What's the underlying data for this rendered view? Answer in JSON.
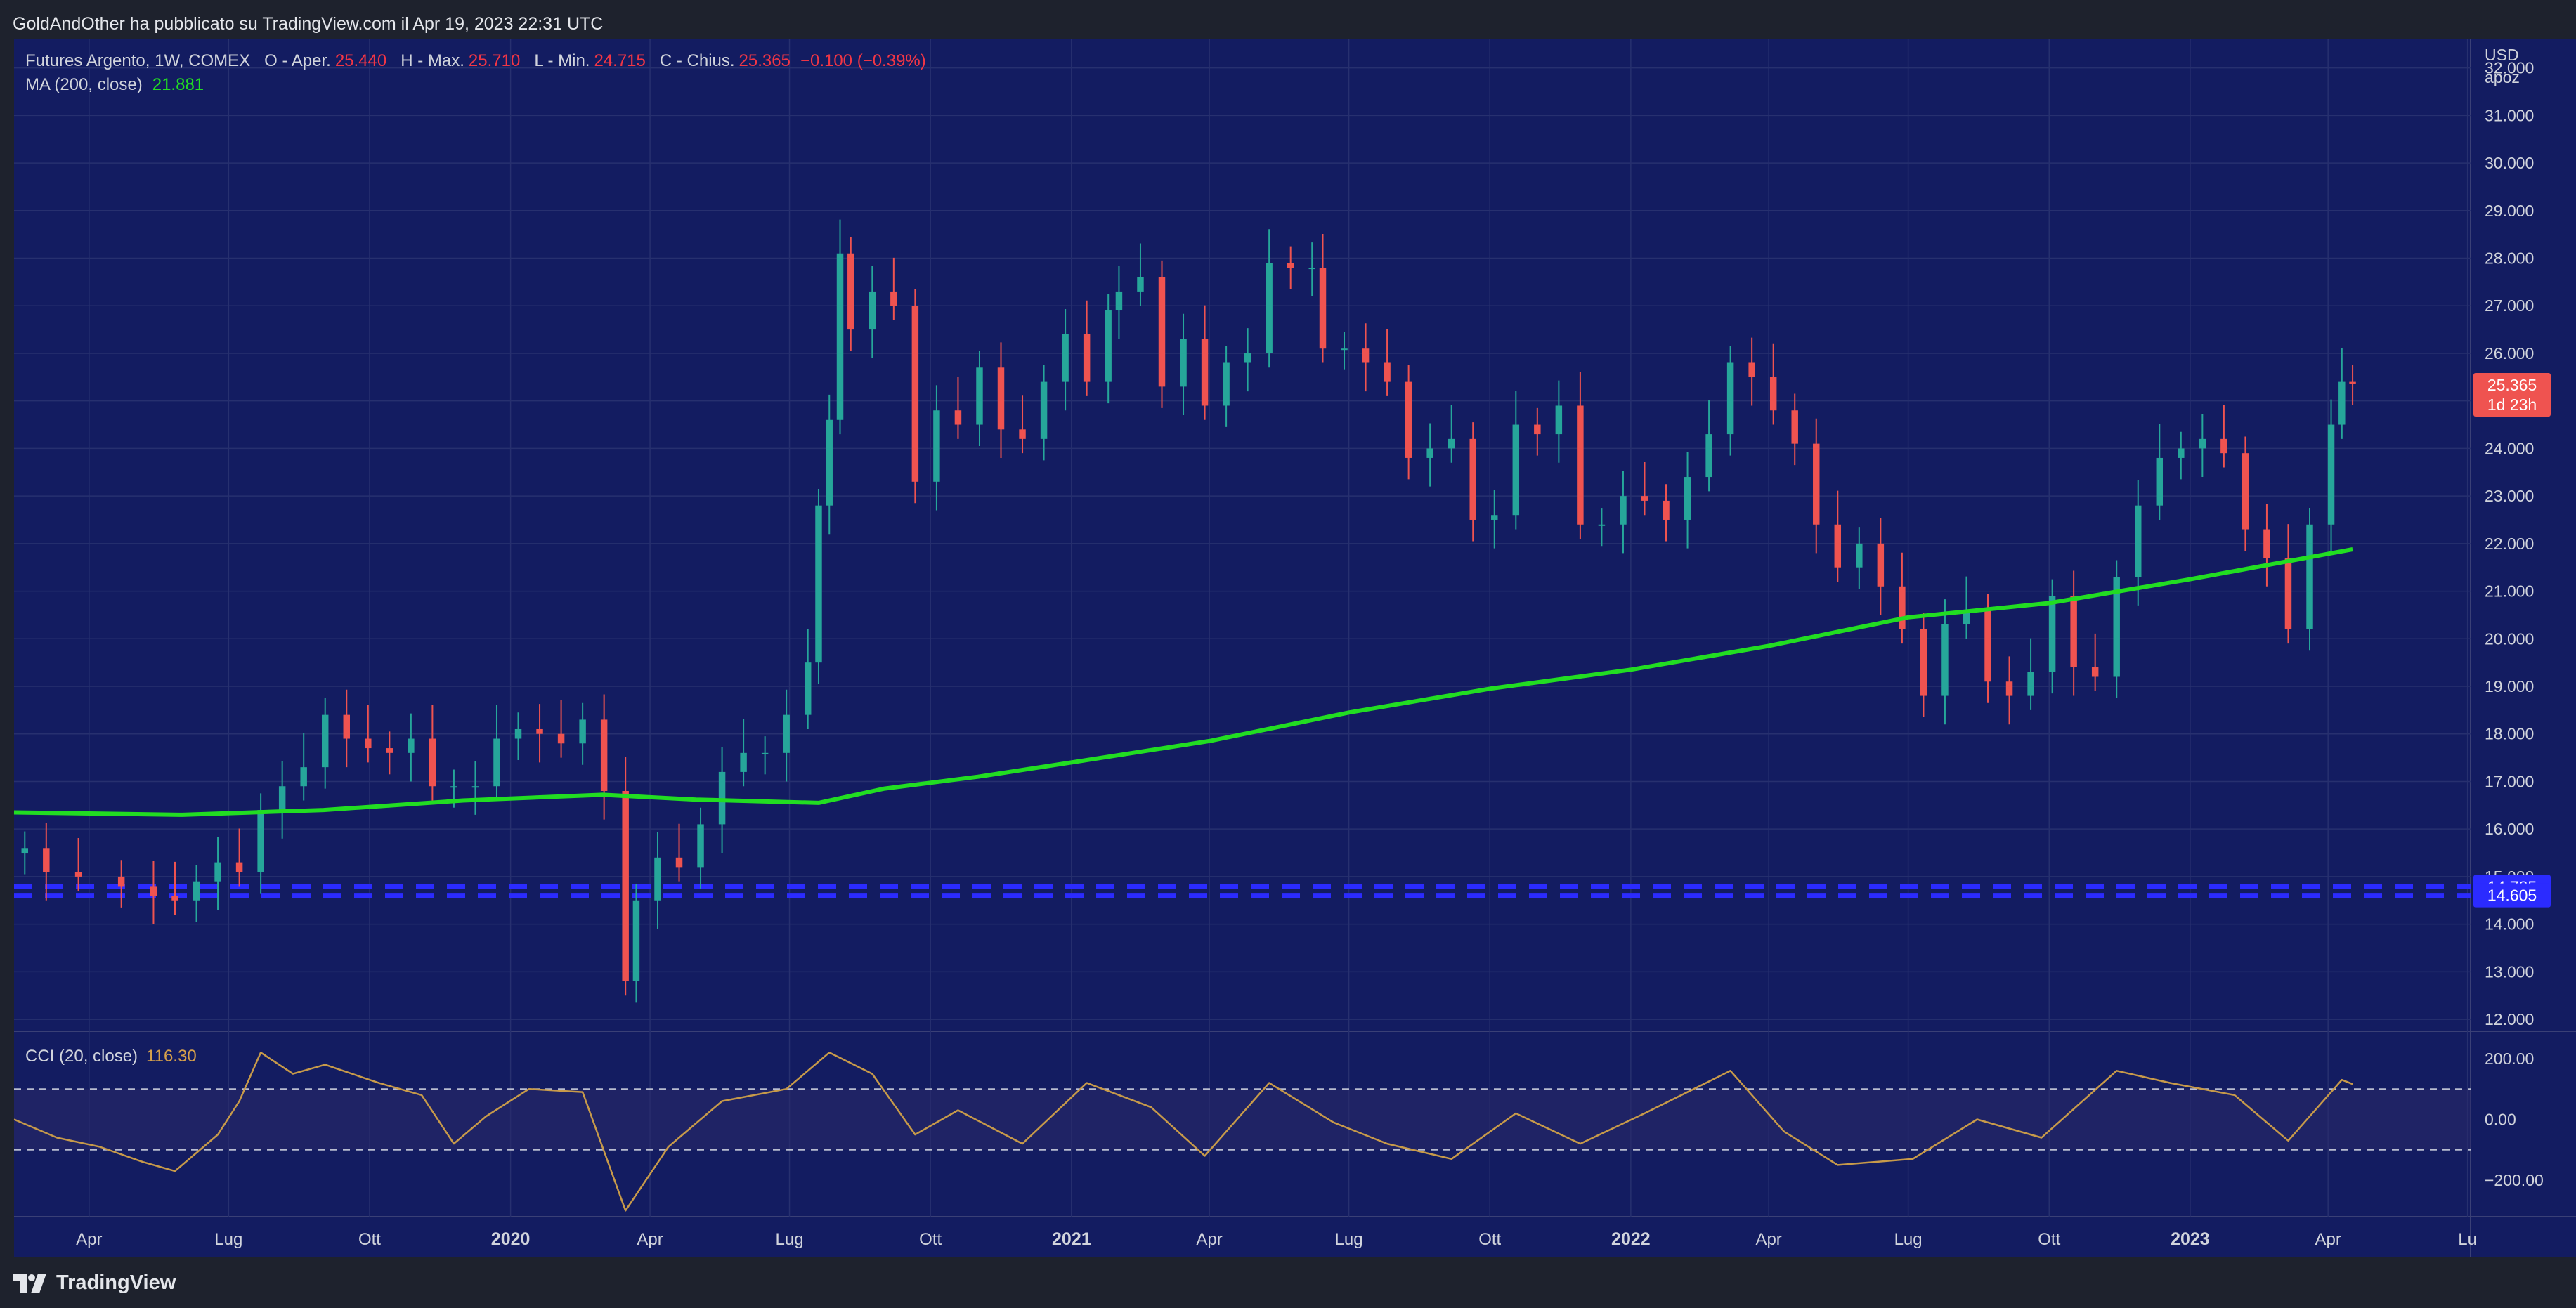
{
  "header": {
    "publisher_line": "GoldAndOther ha pubblicato su TradingView.com il Apr 19, 2023 22:31 UTC"
  },
  "footer": {
    "brand": "TradingView"
  },
  "legend": {
    "symbol": "Futures Argento, 1W, COMEX",
    "open_label": "O - Aper.",
    "open_value": "25.440",
    "high_label": "H - Max.",
    "high_value": "25.710",
    "low_label": "L - Min.",
    "low_value": "24.715",
    "close_label": "C - Chius.",
    "close_value": "25.365",
    "change": "−0.100 (−0.39%)",
    "ma_label": "MA (200, close)",
    "ma_value": "21.881"
  },
  "cci_legend": {
    "label": "CCI (20, close)",
    "value": "116.30"
  },
  "price_axis": {
    "currency": "USD",
    "unit": "apoz",
    "current_price": "25.365",
    "countdown": "1d 23h",
    "level_high": "14.785",
    "level_low": "14.605"
  },
  "colors": {
    "background": "#131c61",
    "up": "#26a69a",
    "down": "#ef5350",
    "ma": "#22dd22",
    "cci": "#c79a4a",
    "level_line": "#2b2bff",
    "price_badge": "#ef5350"
  },
  "chart_data": {
    "type": "candlestick",
    "timeframe": "1W",
    "price_ticks": [
      12,
      13,
      14,
      15,
      16,
      17,
      18,
      19,
      20,
      21,
      22,
      23,
      24,
      25,
      26,
      27,
      28,
      29,
      30,
      31,
      32
    ],
    "price_tick_labels": [
      "12.000",
      "13.000",
      "14.000",
      "15.000",
      "16.000",
      "17.000",
      "18.000",
      "19.000",
      "20.000",
      "21.000",
      "22.000",
      "23.000",
      "24.000",
      "25.000",
      "26.000",
      "27.000",
      "28.000",
      "29.000",
      "30.000",
      "31.000",
      "32.000"
    ],
    "ylim": [
      11.75,
      32.6
    ],
    "xlim": [
      "2019-02-11",
      "2023-07-03"
    ],
    "time_axis": [
      {
        "label": "Apr",
        "date": "2019-04-01"
      },
      {
        "label": "Lug",
        "date": "2019-07-01"
      },
      {
        "label": "Ott",
        "date": "2019-10-01"
      },
      {
        "label": "2020",
        "date": "2020-01-01"
      },
      {
        "label": "Apr",
        "date": "2020-04-01"
      },
      {
        "label": "Lug",
        "date": "2020-07-01"
      },
      {
        "label": "Ott",
        "date": "2020-10-01"
      },
      {
        "label": "2021",
        "date": "2021-01-01"
      },
      {
        "label": "Apr",
        "date": "2021-04-01"
      },
      {
        "label": "Lug",
        "date": "2021-07-01"
      },
      {
        "label": "Ott",
        "date": "2021-10-01"
      },
      {
        "label": "2022",
        "date": "2022-01-01"
      },
      {
        "label": "Apr",
        "date": "2022-04-01"
      },
      {
        "label": "Lug",
        "date": "2022-07-01"
      },
      {
        "label": "Ott",
        "date": "2022-10-01"
      },
      {
        "label": "2023",
        "date": "2023-01-01"
      },
      {
        "label": "Apr",
        "date": "2023-04-01"
      },
      {
        "label": "Lu",
        "date": "2023-07-01"
      }
    ],
    "horizontal_levels": [
      14.785,
      14.605
    ],
    "close_path": [
      [
        "2019-02-18",
        15.6
      ],
      [
        "2019-03-04",
        15.1
      ],
      [
        "2019-03-25",
        15.0
      ],
      [
        "2019-04-22",
        14.8
      ],
      [
        "2019-05-13",
        14.6
      ],
      [
        "2019-05-27",
        14.5
      ],
      [
        "2019-06-10",
        14.9
      ],
      [
        "2019-06-24",
        15.3
      ],
      [
        "2019-07-08",
        15.1
      ],
      [
        "2019-07-22",
        16.4
      ],
      [
        "2019-08-05",
        16.9
      ],
      [
        "2019-08-19",
        17.3
      ],
      [
        "2019-09-02",
        18.4
      ],
      [
        "2019-09-16",
        17.9
      ],
      [
        "2019-09-30",
        17.7
      ],
      [
        "2019-10-14",
        17.6
      ],
      [
        "2019-10-28",
        17.9
      ],
      [
        "2019-11-11",
        16.9
      ],
      [
        "2019-11-25",
        16.9
      ],
      [
        "2019-12-09",
        16.9
      ],
      [
        "2019-12-23",
        17.9
      ],
      [
        "2020-01-06",
        18.1
      ],
      [
        "2020-01-20",
        18.0
      ],
      [
        "2020-02-03",
        17.8
      ],
      [
        "2020-02-17",
        18.3
      ],
      [
        "2020-03-02",
        16.8
      ],
      [
        "2020-03-16",
        12.8
      ],
      [
        "2020-03-23",
        14.5
      ],
      [
        "2020-04-06",
        15.4
      ],
      [
        "2020-04-20",
        15.2
      ],
      [
        "2020-05-04",
        16.1
      ],
      [
        "2020-05-18",
        17.2
      ],
      [
        "2020-06-01",
        17.6
      ],
      [
        "2020-06-15",
        17.6
      ],
      [
        "2020-06-29",
        18.4
      ],
      [
        "2020-07-13",
        19.5
      ],
      [
        "2020-07-20",
        22.8
      ],
      [
        "2020-07-27",
        24.6
      ],
      [
        "2020-08-03",
        28.1
      ],
      [
        "2020-08-10",
        26.5
      ],
      [
        "2020-08-24",
        27.3
      ],
      [
        "2020-09-07",
        27.0
      ],
      [
        "2020-09-21",
        23.3
      ],
      [
        "2020-10-05",
        24.8
      ],
      [
        "2020-10-19",
        24.5
      ],
      [
        "2020-11-02",
        25.7
      ],
      [
        "2020-11-16",
        24.4
      ],
      [
        "2020-11-30",
        24.2
      ],
      [
        "2020-12-14",
        25.4
      ],
      [
        "2020-12-28",
        26.4
      ],
      [
        "2021-01-11",
        25.4
      ],
      [
        "2021-01-25",
        26.9
      ],
      [
        "2021-02-01",
        27.3
      ],
      [
        "2021-02-15",
        27.6
      ],
      [
        "2021-03-01",
        25.3
      ],
      [
        "2021-03-15",
        26.3
      ],
      [
        "2021-03-29",
        24.9
      ],
      [
        "2021-04-12",
        25.8
      ],
      [
        "2021-04-26",
        26.0
      ],
      [
        "2021-05-10",
        27.9
      ],
      [
        "2021-05-24",
        27.8
      ],
      [
        "2021-06-07",
        27.8
      ],
      [
        "2021-06-14",
        26.1
      ],
      [
        "2021-06-28",
        26.1
      ],
      [
        "2021-07-12",
        25.8
      ],
      [
        "2021-07-26",
        25.4
      ],
      [
        "2021-08-09",
        23.8
      ],
      [
        "2021-08-23",
        24.0
      ],
      [
        "2021-09-06",
        24.2
      ],
      [
        "2021-09-20",
        22.5
      ],
      [
        "2021-10-04",
        22.6
      ],
      [
        "2021-10-18",
        24.5
      ],
      [
        "2021-11-01",
        24.3
      ],
      [
        "2021-11-15",
        24.9
      ],
      [
        "2021-11-29",
        22.4
      ],
      [
        "2021-12-13",
        22.4
      ],
      [
        "2021-12-27",
        23.0
      ],
      [
        "2022-01-10",
        22.9
      ],
      [
        "2022-01-24",
        22.5
      ],
      [
        "2022-02-07",
        23.4
      ],
      [
        "2022-02-21",
        24.3
      ],
      [
        "2022-03-07",
        25.8
      ],
      [
        "2022-03-21",
        25.5
      ],
      [
        "2022-04-04",
        24.8
      ],
      [
        "2022-04-18",
        24.1
      ],
      [
        "2022-05-02",
        22.4
      ],
      [
        "2022-05-16",
        21.5
      ],
      [
        "2022-05-30",
        22.0
      ],
      [
        "2022-06-13",
        21.1
      ],
      [
        "2022-06-27",
        20.2
      ],
      [
        "2022-07-11",
        18.8
      ],
      [
        "2022-07-25",
        20.3
      ],
      [
        "2022-08-08",
        20.6
      ],
      [
        "2022-08-22",
        19.1
      ],
      [
        "2022-09-05",
        18.8
      ],
      [
        "2022-09-19",
        19.3
      ],
      [
        "2022-10-03",
        20.9
      ],
      [
        "2022-10-17",
        19.4
      ],
      [
        "2022-10-31",
        19.2
      ],
      [
        "2022-11-14",
        21.3
      ],
      [
        "2022-11-28",
        22.8
      ],
      [
        "2022-12-12",
        23.8
      ],
      [
        "2022-12-26",
        24.0
      ],
      [
        "2023-01-09",
        24.2
      ],
      [
        "2023-01-23",
        23.9
      ],
      [
        "2023-02-06",
        22.3
      ],
      [
        "2023-02-20",
        21.7
      ],
      [
        "2023-03-06",
        20.2
      ],
      [
        "2023-03-20",
        22.4
      ],
      [
        "2023-04-03",
        24.5
      ],
      [
        "2023-04-10",
        25.4
      ],
      [
        "2023-04-17",
        25.365
      ]
    ],
    "ma_200": [
      [
        "2019-02-11",
        16.35
      ],
      [
        "2019-06-01",
        16.3
      ],
      [
        "2019-09-01",
        16.4
      ],
      [
        "2019-12-01",
        16.6
      ],
      [
        "2020-03-01",
        16.72
      ],
      [
        "2020-05-01",
        16.62
      ],
      [
        "2020-07-20",
        16.55
      ],
      [
        "2020-09-01",
        16.85
      ],
      [
        "2020-11-01",
        17.1
      ],
      [
        "2021-01-01",
        17.4
      ],
      [
        "2021-04-01",
        17.85
      ],
      [
        "2021-07-01",
        18.45
      ],
      [
        "2021-10-01",
        18.95
      ],
      [
        "2022-01-01",
        19.35
      ],
      [
        "2022-04-01",
        19.85
      ],
      [
        "2022-07-01",
        20.45
      ],
      [
        "2022-10-01",
        20.75
      ],
      [
        "2023-01-01",
        21.25
      ],
      [
        "2023-04-17",
        21.88
      ]
    ],
    "cci": {
      "label": "CCI (20, close)",
      "ticks": [
        200,
        0,
        -200
      ],
      "tick_labels": [
        "200.00",
        "0.00",
        "−200.00"
      ],
      "bands": [
        100,
        -100
      ],
      "ylim": [
        -320,
        290
      ],
      "points": [
        [
          "2019-02-11",
          0
        ],
        [
          "2019-03-11",
          -60
        ],
        [
          "2019-04-08",
          -90
        ],
        [
          "2019-05-06",
          -140
        ],
        [
          "2019-05-27",
          -170
        ],
        [
          "2019-06-24",
          -50
        ],
        [
          "2019-07-08",
          60
        ],
        [
          "2019-07-22",
          220
        ],
        [
          "2019-08-12",
          150
        ],
        [
          "2019-09-02",
          180
        ],
        [
          "2019-10-07",
          120
        ],
        [
          "2019-11-04",
          80
        ],
        [
          "2019-11-25",
          -80
        ],
        [
          "2019-12-16",
          10
        ],
        [
          "2020-01-13",
          100
        ],
        [
          "2020-02-17",
          90
        ],
        [
          "2020-03-16",
          -300
        ],
        [
          "2020-04-13",
          -90
        ],
        [
          "2020-05-18",
          60
        ],
        [
          "2020-06-29",
          100
        ],
        [
          "2020-07-27",
          220
        ],
        [
          "2020-08-24",
          150
        ],
        [
          "2020-09-21",
          -50
        ],
        [
          "2020-10-19",
          30
        ],
        [
          "2020-11-30",
          -80
        ],
        [
          "2021-01-11",
          120
        ],
        [
          "2021-02-22",
          40
        ],
        [
          "2021-03-29",
          -120
        ],
        [
          "2021-05-10",
          120
        ],
        [
          "2021-06-21",
          -10
        ],
        [
          "2021-07-26",
          -80
        ],
        [
          "2021-09-06",
          -130
        ],
        [
          "2021-10-18",
          20
        ],
        [
          "2021-11-29",
          -80
        ],
        [
          "2022-01-10",
          20
        ],
        [
          "2022-03-07",
          160
        ],
        [
          "2022-04-11",
          -40
        ],
        [
          "2022-05-16",
          -150
        ],
        [
          "2022-07-04",
          -130
        ],
        [
          "2022-08-15",
          0
        ],
        [
          "2022-09-26",
          -60
        ],
        [
          "2022-11-14",
          160
        ],
        [
          "2022-12-19",
          120
        ],
        [
          "2023-01-30",
          80
        ],
        [
          "2023-03-06",
          -70
        ],
        [
          "2023-04-10",
          130
        ],
        [
          "2023-04-17",
          116.3
        ]
      ]
    }
  }
}
